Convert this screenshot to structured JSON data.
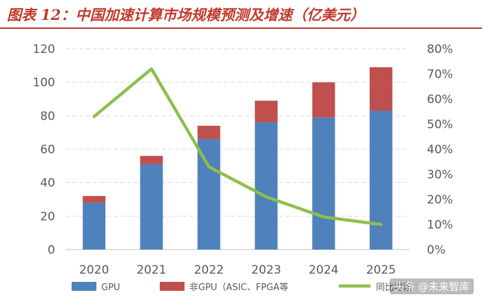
{
  "title": "图表 12：中国加速计算市场规模预测及增速（亿美元）",
  "watermark": "头条 @未来智库",
  "colors": {
    "gpu": "#4f81bd",
    "non_gpu": "#c0504d",
    "growth": "#8dbf4a",
    "title": "#c0392b",
    "grid": "#d9d9d9",
    "axis_text": "#595959"
  },
  "chart_data": {
    "type": "bar",
    "stacked": true,
    "categories": [
      "2020",
      "2021",
      "2022",
      "2023",
      "2024",
      "2025"
    ],
    "series": [
      {
        "name": "GPU",
        "kind": "bar",
        "axis": "left",
        "values": [
          28,
          51,
          66,
          76,
          79,
          83
        ]
      },
      {
        "name": "非GPU（ASIC、FPGA等",
        "kind": "bar",
        "axis": "left",
        "values": [
          4,
          5,
          8,
          13,
          21,
          26
        ]
      },
      {
        "name": "同比增速",
        "kind": "line",
        "axis": "right",
        "values": [
          53,
          72,
          33,
          21,
          13,
          10
        ]
      }
    ],
    "y_left": {
      "min": 0,
      "max": 120,
      "ticks": [
        "0",
        "20",
        "40",
        "60",
        "80",
        "100",
        "120"
      ]
    },
    "y_right": {
      "min": 0,
      "max": 80,
      "ticks": [
        "0%",
        "10%",
        "20%",
        "30%",
        "40%",
        "50%",
        "60%",
        "70%",
        "80%"
      ]
    },
    "grid": true,
    "legend_position": "bottom"
  }
}
